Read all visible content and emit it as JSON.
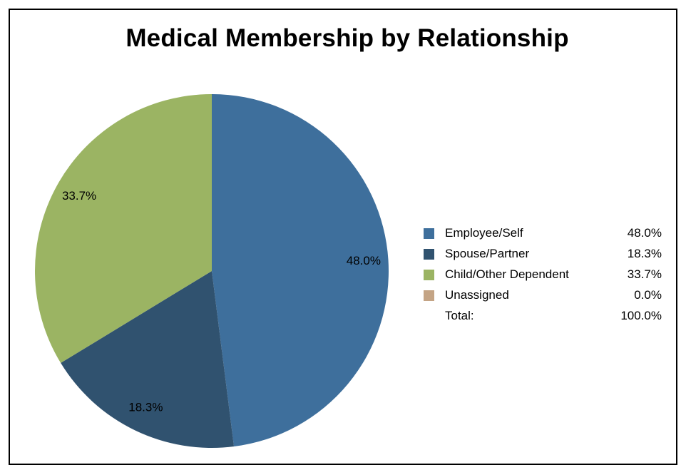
{
  "chart_data": {
    "type": "pie",
    "title": "Medical Membership by Relationship",
    "slices": [
      {
        "label": "Employee/Self",
        "value": 48.0,
        "display": "48.0%",
        "color": "#3e6f9c"
      },
      {
        "label": "Spouse/Partner",
        "value": 18.3,
        "display": "18.3%",
        "color": "#30526f"
      },
      {
        "label": "Child/Other Dependent",
        "value": 33.7,
        "display": "33.7%",
        "color": "#9bb463"
      },
      {
        "label": "Unassigned",
        "value": 0.0,
        "display": "0.0%",
        "color": "#c4a485"
      }
    ],
    "total_label": "Total:",
    "total_display": "100.0%",
    "legend_position": "right"
  }
}
